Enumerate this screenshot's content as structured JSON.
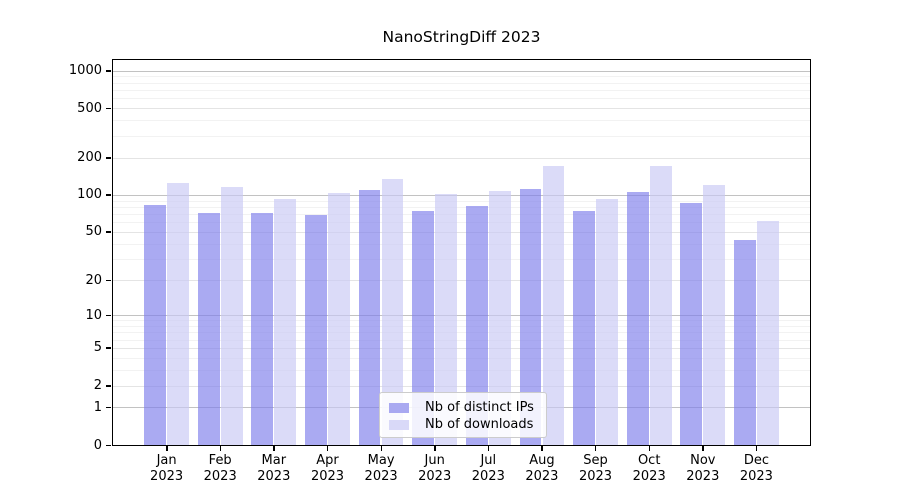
{
  "chart_data": {
    "type": "bar",
    "title": "NanoStringDiff 2023",
    "categories": [
      "Jan",
      "Feb",
      "Mar",
      "Apr",
      "May",
      "Jun",
      "Jul",
      "Aug",
      "Sep",
      "Oct",
      "Nov",
      "Dec"
    ],
    "year_label": "2023",
    "series": [
      {
        "name": "Nb of distinct IPs",
        "color": "#a9a9f1",
        "rgba": "rgba(125,125,235,0.65)",
        "values": [
          83,
          71,
          71,
          69,
          110,
          74,
          82,
          112,
          74,
          106,
          86,
          43
        ]
      },
      {
        "name": "Nb of downloads",
        "color": "#d9d9f8",
        "rgba": "rgba(200,200,245,0.65)",
        "values": [
          124,
          115,
          93,
          104,
          134,
          101,
          108,
          172,
          93,
          170,
          120,
          61
        ]
      }
    ],
    "yscale": "log1p",
    "yticks": [
      0,
      1,
      2,
      5,
      10,
      20,
      50,
      100,
      200,
      500,
      1000
    ],
    "ylim": [
      0,
      1215
    ],
    "grid": {
      "major": [
        1,
        10,
        100,
        1000
      ],
      "mid": [
        2,
        5,
        20,
        50,
        200,
        500
      ],
      "minor": [
        3,
        4,
        6,
        7,
        8,
        9,
        30,
        40,
        60,
        70,
        80,
        90,
        300,
        400,
        600,
        700,
        800,
        900
      ]
    },
    "grid_colors": {
      "major": "#c2c2c2",
      "mid": "#e4e4e4",
      "minor": "#f2f2f2"
    },
    "legend_position": "inside-bottom-center",
    "frame_color": "#000000"
  }
}
